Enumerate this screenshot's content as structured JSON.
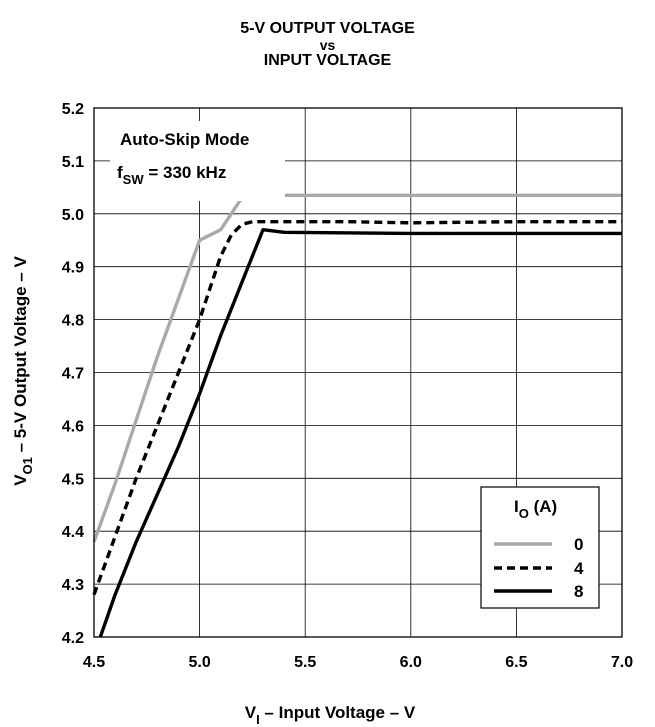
{
  "chart_data": {
    "type": "line",
    "title": [
      "5-V OUTPUT VOLTAGE",
      "vs",
      "INPUT VOLTAGE"
    ],
    "xlabel": {
      "main": "V",
      "sub": "I",
      "rest": " – Input Voltage  –  V"
    },
    "ylabel": {
      "main": "V",
      "sub": "O1",
      "rest": " – 5-V Output Voltage  –  V"
    },
    "xlim": [
      4.5,
      7.0
    ],
    "ylim": [
      4.2,
      5.2
    ],
    "xticks": [
      "4.5",
      "5.0",
      "5.5",
      "6.0",
      "6.5",
      "7.0"
    ],
    "xtick_values": [
      4.5,
      5.0,
      5.5,
      6.0,
      6.5,
      7.0
    ],
    "yticks": [
      "4.2",
      "4.3",
      "4.4",
      "4.5",
      "4.6",
      "4.7",
      "4.8",
      "4.9",
      "5.0",
      "5.1",
      "5.2"
    ],
    "ytick_values": [
      4.2,
      4.3,
      4.4,
      4.5,
      4.6,
      4.7,
      4.8,
      4.9,
      5.0,
      5.1,
      5.2
    ],
    "grid": true,
    "annotation": {
      "line1": "Auto-Skip Mode",
      "line2_main": "f",
      "line2_sub": "SW",
      "line2_rest": " = 330 kHz"
    },
    "legend": {
      "title_main": "I",
      "title_sub": "O",
      "title_rest": " (A)",
      "placement": "bottom-right"
    },
    "series": [
      {
        "name": "0",
        "color": "#aaaaaa",
        "style": "solid",
        "x": [
          4.5,
          4.6,
          4.7,
          4.8,
          4.9,
          5.0,
          5.1,
          5.15,
          5.2,
          5.25,
          5.3,
          5.5,
          6.0,
          6.5,
          7.0
        ],
        "y": [
          4.38,
          4.49,
          4.61,
          4.73,
          4.84,
          4.95,
          4.97,
          5.0,
          5.03,
          5.033,
          5.035,
          5.035,
          5.035,
          5.035,
          5.035
        ]
      },
      {
        "name": "4",
        "color": "#000000",
        "style": "dashed",
        "x": [
          4.5,
          4.6,
          4.7,
          4.8,
          4.9,
          5.0,
          5.1,
          5.15,
          5.2,
          5.25,
          5.3,
          5.5,
          5.7,
          6.0,
          6.5,
          7.0
        ],
        "y": [
          4.28,
          4.39,
          4.5,
          4.6,
          4.7,
          4.8,
          4.92,
          4.96,
          4.98,
          4.985,
          4.985,
          4.985,
          4.985,
          4.983,
          4.985,
          4.985
        ]
      },
      {
        "name": "8",
        "color": "#000000",
        "style": "solid",
        "x": [
          4.53,
          4.6,
          4.7,
          4.8,
          4.9,
          5.0,
          5.1,
          5.2,
          5.3,
          5.4,
          6.0,
          6.5,
          7.0
        ],
        "y": [
          4.2,
          4.28,
          4.38,
          4.47,
          4.56,
          4.66,
          4.77,
          4.87,
          4.97,
          4.965,
          4.963,
          4.963,
          4.963
        ]
      }
    ]
  }
}
